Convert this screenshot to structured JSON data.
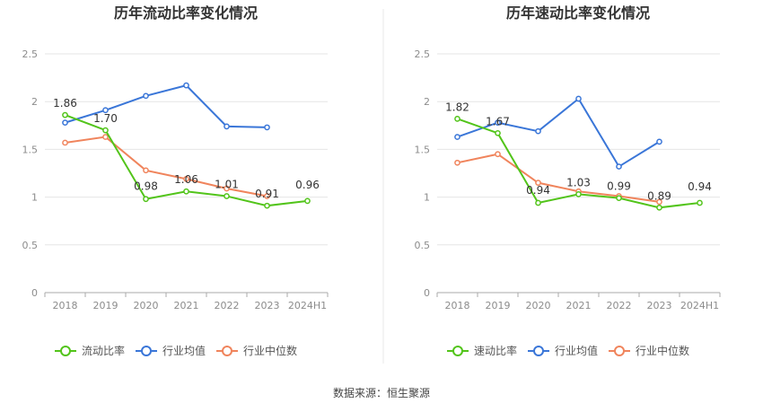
{
  "source_text": "数据来源：恒生聚源",
  "chart_data": [
    {
      "type": "line",
      "title": "历年流动比率变化情况",
      "categories": [
        "2018",
        "2019",
        "2020",
        "2021",
        "2022",
        "2023",
        "2024H1"
      ],
      "ylim": [
        0,
        2.5
      ],
      "yticks": [
        "0",
        "0.5",
        "1",
        "1.5",
        "2",
        "2.5"
      ],
      "grid": true,
      "legend_position": "bottom",
      "series": [
        {
          "name": "流动比率",
          "color": "#52c41a",
          "values": [
            1.86,
            1.7,
            0.98,
            1.06,
            1.01,
            0.91,
            0.96
          ],
          "labels": [
            "1.86",
            "1.70",
            "0.98",
            "1.06",
            "1.01",
            "0.91",
            "0.96"
          ]
        },
        {
          "name": "行业均值",
          "color": "#3a76d8",
          "values": [
            1.78,
            1.91,
            2.06,
            2.17,
            1.74,
            1.73,
            null
          ]
        },
        {
          "name": "行业中位数",
          "color": "#f0845c",
          "values": [
            1.57,
            1.63,
            1.28,
            1.19,
            1.09,
            1.01,
            null
          ]
        }
      ]
    },
    {
      "type": "line",
      "title": "历年速动比率变化情况",
      "categories": [
        "2018",
        "2019",
        "2020",
        "2021",
        "2022",
        "2023",
        "2024H1"
      ],
      "ylim": [
        0,
        2.5
      ],
      "yticks": [
        "0",
        "0.5",
        "1",
        "1.5",
        "2",
        "2.5"
      ],
      "grid": true,
      "legend_position": "bottom",
      "series": [
        {
          "name": "速动比率",
          "color": "#52c41a",
          "values": [
            1.82,
            1.67,
            0.94,
            1.03,
            0.99,
            0.89,
            0.94
          ],
          "labels": [
            "1.82",
            "1.67",
            "0.94",
            "1.03",
            "0.99",
            "0.89",
            "0.94"
          ]
        },
        {
          "name": "行业均值",
          "color": "#3a76d8",
          "values": [
            1.63,
            1.78,
            1.69,
            2.03,
            1.32,
            1.58,
            null
          ]
        },
        {
          "name": "行业中位数",
          "color": "#f0845c",
          "values": [
            1.36,
            1.45,
            1.15,
            1.06,
            1.01,
            0.95,
            null
          ]
        }
      ]
    }
  ]
}
